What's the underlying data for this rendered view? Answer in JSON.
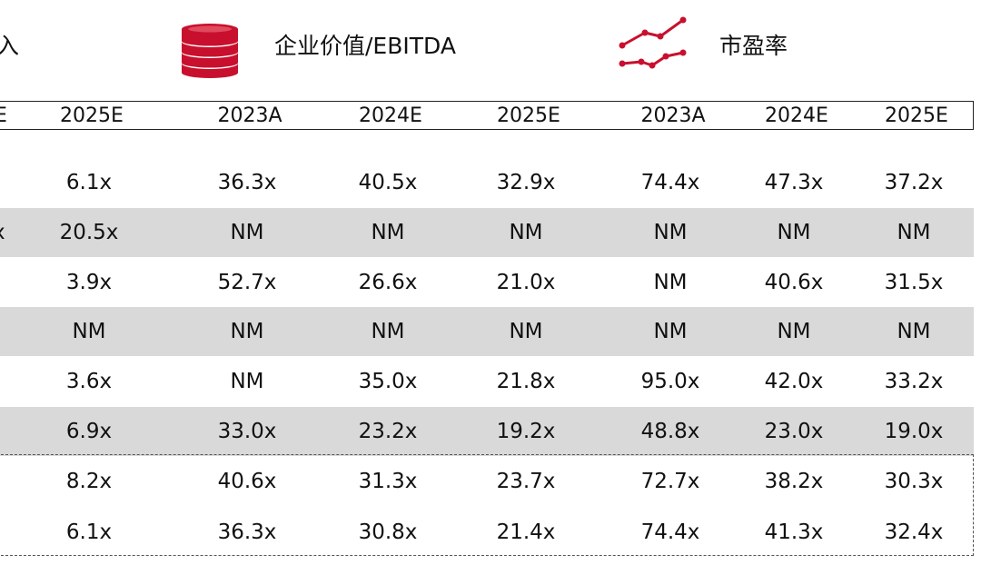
{
  "header": {
    "partial_label": "入",
    "ev_ebitda_label": "企业价值/EBITDA",
    "pe_label": "市盈率",
    "icons": {
      "ev_ebitda": "coin-stack-icon",
      "pe": "line-trend-icon"
    },
    "accent_color": "#c8102e"
  },
  "years": {
    "partial": "E",
    "col1": "2025E",
    "ev": [
      "2023A",
      "2024E",
      "2025E"
    ],
    "pe": [
      "2023A",
      "2024E",
      "2025E"
    ]
  },
  "rows": [
    {
      "partial": "",
      "c1": "6.1x",
      "ev": [
        "36.3x",
        "40.5x",
        "32.9x"
      ],
      "pe": [
        "74.4x",
        "47.3x",
        "37.2x"
      ]
    },
    {
      "partial": "x",
      "c1": "20.5x",
      "ev": [
        "NM",
        "NM",
        "NM"
      ],
      "pe": [
        "NM",
        "NM",
        "NM"
      ]
    },
    {
      "partial": "",
      "c1": "3.9x",
      "ev": [
        "52.7x",
        "26.6x",
        "21.0x"
      ],
      "pe": [
        "NM",
        "40.6x",
        "31.5x"
      ]
    },
    {
      "partial": "",
      "c1": "NM",
      "ev": [
        "NM",
        "NM",
        "NM"
      ],
      "pe": [
        "NM",
        "NM",
        "NM"
      ]
    },
    {
      "partial": "",
      "c1": "3.6x",
      "ev": [
        "NM",
        "35.0x",
        "21.8x"
      ],
      "pe": [
        "95.0x",
        "42.0x",
        "33.2x"
      ]
    },
    {
      "partial": "",
      "c1": "6.9x",
      "ev": [
        "33.0x",
        "23.2x",
        "19.2x"
      ],
      "pe": [
        "48.8x",
        "23.0x",
        "19.0x"
      ]
    },
    {
      "partial": "",
      "c1": "8.2x",
      "ev": [
        "40.6x",
        "31.3x",
        "23.7x"
      ],
      "pe": [
        "72.7x",
        "38.2x",
        "30.3x"
      ]
    },
    {
      "partial": "",
      "c1": "6.1x",
      "ev": [
        "36.3x",
        "30.8x",
        "21.4x"
      ],
      "pe": [
        "74.4x",
        "41.3x",
        "32.4x"
      ]
    }
  ]
}
